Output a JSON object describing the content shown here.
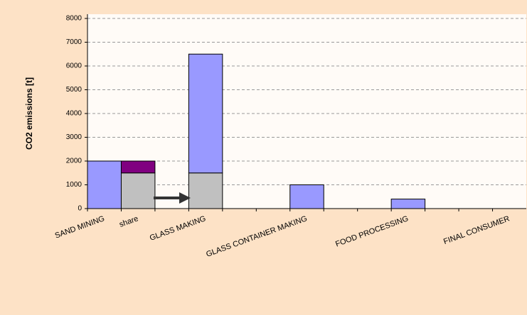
{
  "chart_data": {
    "type": "stacked_bar",
    "ylabel": "CO2 emissions [t]",
    "categories": [
      "SAND MINING",
      "share",
      null,
      "GLASS MAKING",
      null,
      null,
      "GLASS CONTAINER MAKING",
      null,
      null,
      "FOOD PROCESSING",
      null,
      null,
      "FINAL CONSUMER"
    ],
    "series": [
      {
        "color": "#c0c0c0",
        "values": [
          null,
          1500,
          null,
          1500,
          null,
          null,
          null,
          null,
          null,
          null,
          null,
          null,
          null
        ]
      },
      {
        "color": "#9999ff",
        "values": [
          2000,
          null,
          null,
          5000,
          null,
          null,
          1000,
          null,
          null,
          400,
          null,
          null,
          null
        ]
      },
      {
        "color": "#800080",
        "values": [
          null,
          500,
          null,
          null,
          null,
          null,
          null,
          null,
          null,
          null,
          null,
          null,
          null
        ]
      }
    ],
    "ylim": [
      0,
      8000
    ],
    "yticks": [
      0,
      1000,
      2000,
      3000,
      4000,
      5000,
      6000,
      7000,
      8000
    ],
    "grid": true
  }
}
